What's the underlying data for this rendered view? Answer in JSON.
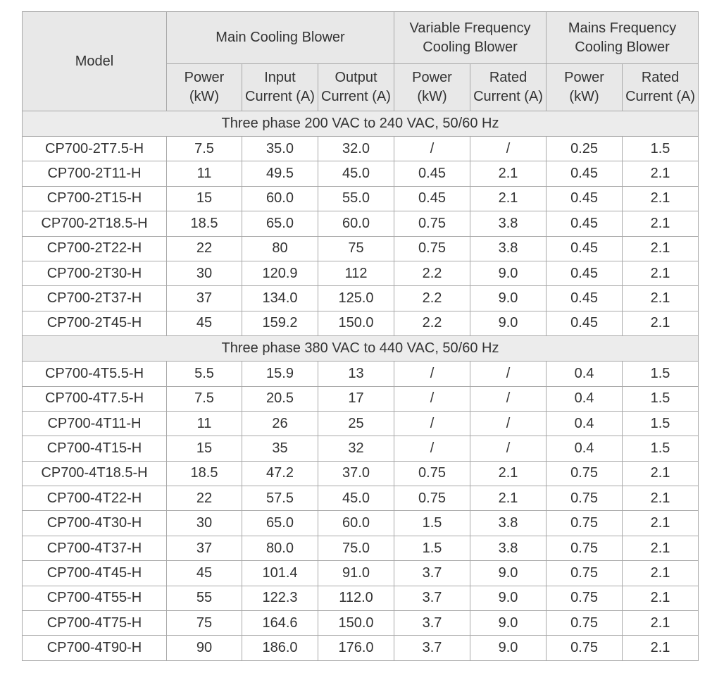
{
  "table": {
    "header": {
      "model": "Model",
      "groups": [
        [
          "Main Cooling Blower"
        ],
        [
          "Variable Frequency",
          "Cooling Blower"
        ],
        [
          "Mains Frequency",
          "Cooling Blower"
        ]
      ],
      "subheaders": [
        [
          "Power",
          "(kW)"
        ],
        [
          "Input",
          "Current (A)"
        ],
        [
          "Output",
          "Current (A)"
        ],
        [
          "Power",
          "(kW)"
        ],
        [
          "Rated",
          "Current (A)"
        ],
        [
          "Power",
          "(kW)"
        ],
        [
          "Rated",
          "Current (A)"
        ]
      ]
    },
    "sections": [
      {
        "title": "Three phase 200 VAC to 240 VAC, 50/60 Hz",
        "rows": [
          [
            "CP700-2T7.5-H",
            "7.5",
            "35.0",
            "32.0",
            "/",
            "/",
            "0.25",
            "1.5"
          ],
          [
            "CP700-2T11-H",
            "11",
            "49.5",
            "45.0",
            "0.45",
            "2.1",
            "0.45",
            "2.1"
          ],
          [
            "CP700-2T15-H",
            "15",
            "60.0",
            "55.0",
            "0.45",
            "2.1",
            "0.45",
            "2.1"
          ],
          [
            "CP700-2T18.5-H",
            "18.5",
            "65.0",
            "60.0",
            "0.75",
            "3.8",
            "0.45",
            "2.1"
          ],
          [
            "CP700-2T22-H",
            "22",
            "80",
            "75",
            "0.75",
            "3.8",
            "0.45",
            "2.1"
          ],
          [
            "CP700-2T30-H",
            "30",
            "120.9",
            "112",
            "2.2",
            "9.0",
            "0.45",
            "2.1"
          ],
          [
            "CP700-2T37-H",
            "37",
            "134.0",
            "125.0",
            "2.2",
            "9.0",
            "0.45",
            "2.1"
          ],
          [
            "CP700-2T45-H",
            "45",
            "159.2",
            "150.0",
            "2.2",
            "9.0",
            "0.45",
            "2.1"
          ]
        ]
      },
      {
        "title": "Three phase 380 VAC to 440 VAC, 50/60 Hz",
        "rows": [
          [
            "CP700-4T5.5-H",
            "5.5",
            "15.9",
            "13",
            "/",
            "/",
            "0.4",
            "1.5"
          ],
          [
            "CP700-4T7.5-H",
            "7.5",
            "20.5",
            "17",
            "/",
            "/",
            "0.4",
            "1.5"
          ],
          [
            "CP700-4T11-H",
            "11",
            "26",
            "25",
            "/",
            "/",
            "0.4",
            "1.5"
          ],
          [
            "CP700-4T15-H",
            "15",
            "35",
            "32",
            "/",
            "/",
            "0.4",
            "1.5"
          ],
          [
            "CP700-4T18.5-H",
            "18.5",
            "47.2",
            "37.0",
            "0.75",
            "2.1",
            "0.75",
            "2.1"
          ],
          [
            "CP700-4T22-H",
            "22",
            "57.5",
            "45.0",
            "0.75",
            "2.1",
            "0.75",
            "2.1"
          ],
          [
            "CP700-4T30-H",
            "30",
            "65.0",
            "60.0",
            "1.5",
            "3.8",
            "0.75",
            "2.1"
          ],
          [
            "CP700-4T37-H",
            "37",
            "80.0",
            "75.0",
            "1.5",
            "3.8",
            "0.75",
            "2.1"
          ],
          [
            "CP700-4T45-H",
            "45",
            "101.4",
            "91.0",
            "3.7",
            "9.0",
            "0.75",
            "2.1"
          ],
          [
            "CP700-4T55-H",
            "55",
            "122.3",
            "112.0",
            "3.7",
            "9.0",
            "0.75",
            "2.1"
          ],
          [
            "CP700-4T75-H",
            "75",
            "164.6",
            "150.0",
            "3.7",
            "9.0",
            "0.75",
            "2.1"
          ],
          [
            "CP700-4T90-H",
            "90",
            "186.0",
            "176.0",
            "3.7",
            "9.0",
            "0.75",
            "2.1"
          ]
        ]
      }
    ]
  }
}
